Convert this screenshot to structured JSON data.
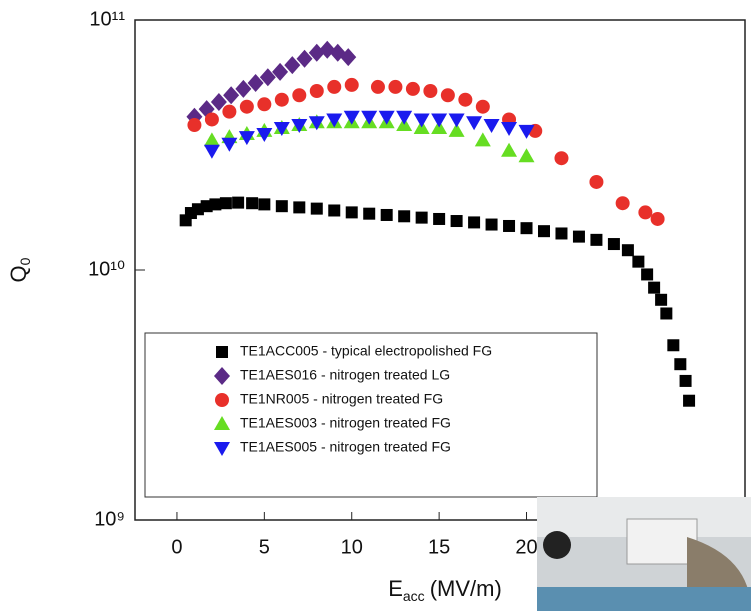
{
  "chart_data": {
    "type": "scatter",
    "x_label": {
      "main": "E",
      "sub": "acc",
      "unit": "(MV/m)"
    },
    "y_label": {
      "main": "Q",
      "sub": "0"
    },
    "xlim": [
      -2.4,
      32.5
    ],
    "xticks": [
      0,
      5,
      10,
      15,
      20
    ],
    "ylim": [
      1000000000.0,
      100000000000.0
    ],
    "ylog": true,
    "yticks": [
      {
        "value": 1000000000.0,
        "label": "10⁹"
      },
      {
        "value": 10000000000.0,
        "label": "10¹⁰"
      },
      {
        "value": 100000000000.0,
        "label": "10¹¹"
      }
    ],
    "series": [
      {
        "name": "TE1ACC005 - typical electropolished FG",
        "color": "#000000",
        "marker": "square",
        "x": [
          0.5,
          0.8,
          1.2,
          1.7,
          2.2,
          2.8,
          3.5,
          4.3,
          5,
          6,
          7,
          8,
          9,
          10,
          11,
          12,
          13,
          14,
          15,
          16,
          17,
          18,
          19,
          20,
          21,
          22,
          23,
          24,
          25,
          25.8,
          26.4,
          26.9,
          27.3,
          27.7,
          28,
          28.4,
          28.8,
          29.1,
          29.3
        ],
        "values": [
          15800000000.0,
          16900000000.0,
          17500000000.0,
          18000000000.0,
          18300000000.0,
          18500000000.0,
          18600000000.0,
          18500000000.0,
          18300000000.0,
          18000000000.0,
          17800000000.0,
          17600000000.0,
          17300000000.0,
          17000000000.0,
          16800000000.0,
          16600000000.0,
          16400000000.0,
          16200000000.0,
          16000000000.0,
          15700000000.0,
          15500000000.0,
          15200000000.0,
          15000000000.0,
          14700000000.0,
          14300000000.0,
          14000000000.0,
          13600000000.0,
          13200000000.0,
          12700000000.0,
          12000000000.0,
          10800000000.0,
          9600000000.0,
          8500000000.0,
          7600000000.0,
          6700000000.0,
          5000000000.0,
          4200000000.0,
          3600000000.0,
          3000000000.0
        ]
      },
      {
        "name": "TE1AES016 - nitrogen treated LG",
        "color": "#5b2a86",
        "marker": "diamond",
        "x": [
          1,
          1.7,
          2.4,
          3.1,
          3.8,
          4.5,
          5.2,
          5.9,
          6.6,
          7.3,
          8,
          8.6,
          9.2,
          9.8
        ],
        "values": [
          41000000000.0,
          44000000000.0,
          47000000000.0,
          50000000000.0,
          53000000000.0,
          56000000000.0,
          59000000000.0,
          62000000000.0,
          66000000000.0,
          70000000000.0,
          74000000000.0,
          76000000000.0,
          74000000000.0,
          71000000000.0
        ]
      },
      {
        "name": "TE1NR005 - nitrogen treated FG",
        "color": "#e8302a",
        "marker": "circle",
        "x": [
          1,
          2,
          3,
          4,
          5,
          6,
          7,
          8,
          9,
          10,
          11.5,
          12.5,
          13.5,
          14.5,
          15.5,
          16.5,
          17.5,
          19,
          20.5,
          22,
          24,
          25.5,
          26.8,
          27.5
        ],
        "values": [
          38000000000.0,
          40000000000.0,
          43000000000.0,
          45000000000.0,
          46000000000.0,
          48000000000.0,
          50000000000.0,
          52000000000.0,
          54000000000.0,
          55000000000.0,
          54000000000.0,
          54000000000.0,
          53000000000.0,
          52000000000.0,
          50000000000.0,
          48000000000.0,
          45000000000.0,
          40000000000.0,
          36000000000.0,
          28000000000.0,
          22500000000.0,
          18500000000.0,
          17000000000.0,
          16000000000.0
        ]
      },
      {
        "name": "TE1AES003 - nitrogen treated FG",
        "color": "#66dd22",
        "marker": "triangle-up",
        "x": [
          2,
          3,
          4,
          5,
          6,
          7,
          8,
          9,
          10,
          11,
          12,
          13,
          14,
          15,
          16,
          17.5,
          19,
          20
        ],
        "values": [
          33000000000.0,
          34000000000.0,
          35000000000.0,
          36000000000.0,
          37000000000.0,
          38000000000.0,
          39000000000.0,
          39000000000.0,
          39000000000.0,
          39000000000.0,
          39000000000.0,
          38000000000.0,
          37000000000.0,
          37000000000.0,
          36000000000.0,
          33000000000.0,
          30000000000.0,
          28500000000.0
        ]
      },
      {
        "name": "TE1AES005 - nitrogen treated FG",
        "color": "#1a1aee",
        "marker": "triangle-down",
        "x": [
          2,
          3,
          4,
          5,
          6,
          7,
          8,
          9,
          10,
          11,
          12,
          13,
          14,
          15,
          16,
          17,
          18,
          19,
          20
        ],
        "values": [
          30000000000.0,
          32000000000.0,
          34000000000.0,
          35000000000.0,
          37000000000.0,
          38000000000.0,
          39000000000.0,
          40000000000.0,
          41000000000.0,
          41000000000.0,
          41000000000.0,
          41000000000.0,
          40000000000.0,
          40000000000.0,
          40000000000.0,
          39000000000.0,
          38000000000.0,
          37000000000.0,
          36000000000.0
        ]
      }
    ],
    "legend": "lower-left"
  }
}
